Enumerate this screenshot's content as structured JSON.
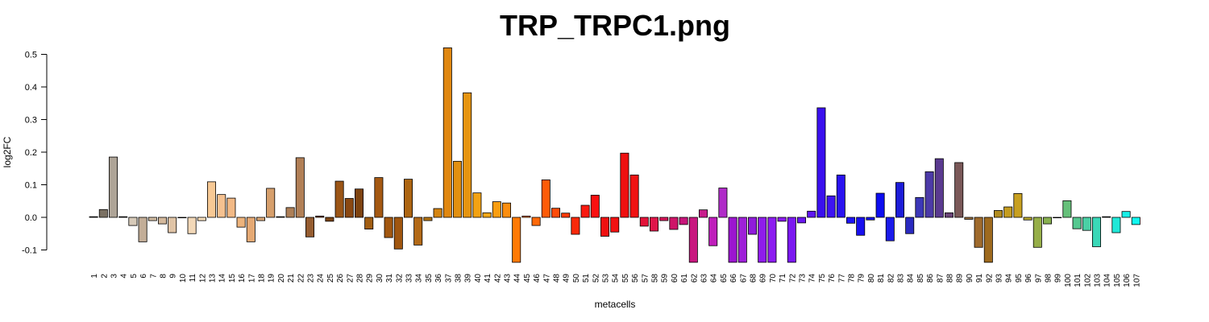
{
  "chart_data": {
    "type": "bar",
    "title": "TRP_TRPC1.png",
    "xlabel": "metacells",
    "ylabel": "log2FC",
    "ylim": [
      -0.1,
      0.5
    ],
    "yticks": [
      -0.1,
      0.0,
      0.1,
      0.2,
      0.3,
      0.4,
      0.5
    ],
    "ytick_labels": [
      "-0.1",
      "0.0",
      "0.1",
      "0.2",
      "0.3",
      "0.4",
      "0.5"
    ],
    "grid": false,
    "categories": [
      "1",
      "2",
      "3",
      "4",
      "5",
      "6",
      "7",
      "8",
      "9",
      "10",
      "11",
      "12",
      "13",
      "14",
      "15",
      "16",
      "17",
      "18",
      "19",
      "20",
      "21",
      "22",
      "23",
      "24",
      "25",
      "26",
      "27",
      "28",
      "29",
      "30",
      "31",
      "32",
      "33",
      "34",
      "35",
      "36",
      "37",
      "38",
      "39",
      "40",
      "41",
      "42",
      "43",
      "44",
      "45",
      "46",
      "47",
      "48",
      "49",
      "50",
      "51",
      "52",
      "53",
      "54",
      "55",
      "56",
      "57",
      "58",
      "59",
      "60",
      "61",
      "62",
      "63",
      "64",
      "65",
      "66",
      "67",
      "68",
      "69",
      "70",
      "71",
      "72",
      "73",
      "74",
      "75",
      "76",
      "77",
      "78",
      "79",
      "80",
      "81",
      "82",
      "83",
      "84",
      "85",
      "86",
      "87",
      "88",
      "89",
      "90",
      "91",
      "92",
      "93",
      "94",
      "95",
      "96",
      "97",
      "98",
      "99",
      "100",
      "101",
      "102",
      "103",
      "104",
      "105",
      "106",
      "107"
    ],
    "values": [
      0.002,
      0.024,
      0.185,
      0.002,
      -0.025,
      -0.075,
      -0.01,
      -0.02,
      -0.047,
      0.0,
      -0.05,
      -0.01,
      0.109,
      0.07,
      0.059,
      -0.03,
      -0.075,
      -0.01,
      0.089,
      0.002,
      0.03,
      0.183,
      -0.06,
      0.004,
      -0.012,
      0.111,
      0.058,
      0.087,
      -0.036,
      0.122,
      -0.062,
      -0.097,
      0.117,
      -0.085,
      -0.01,
      0.027,
      0.52,
      0.172,
      0.382,
      0.075,
      0.014,
      0.048,
      0.044,
      -0.138,
      0.004,
      -0.025,
      0.115,
      0.028,
      0.013,
      -0.052,
      0.037,
      0.068,
      -0.058,
      -0.045,
      0.197,
      0.13,
      -0.027,
      -0.042,
      -0.01,
      -0.037,
      -0.022,
      -0.138,
      0.023,
      -0.087,
      0.09,
      -0.138,
      -0.138,
      -0.052,
      -0.138,
      -0.138,
      -0.012,
      -0.138,
      -0.017,
      0.019,
      0.336,
      0.066,
      0.13,
      -0.018,
      -0.055,
      -0.008,
      0.074,
      -0.072,
      0.107,
      -0.05,
      0.061,
      0.14,
      0.18,
      0.014,
      0.168,
      -0.006,
      -0.092,
      -0.138,
      0.021,
      0.032,
      0.073,
      -0.008,
      -0.092,
      -0.02,
      0.0,
      0.051,
      -0.035,
      -0.04,
      -0.09,
      0.002,
      -0.047,
      0.018,
      -0.022
    ],
    "colors": [
      "#3a3025",
      "#7b7163",
      "#aea497",
      "#cec7be",
      "#d7cab9",
      "#c2ad97",
      "#d1bca2",
      "#d4b99d",
      "#e0c4a6",
      "#ead1b3",
      "#f2d8b8",
      "#f8deba",
      "#f7c995",
      "#f5c190",
      "#f2b985",
      "#edb37b",
      "#e5a974",
      "#ddaa79",
      "#d69f6c",
      "#bd8860",
      "#ad7f57",
      "#b17f56",
      "#955c30",
      "#8a4f17",
      "#7d4412",
      "#9b5516",
      "#8a4812",
      "#7e430f",
      "#a15d12",
      "#a55913",
      "#a25710",
      "#a0560f",
      "#ad6511",
      "#b26917",
      "#b37412",
      "#d58510",
      "#e08710",
      "#e29011",
      "#e59410",
      "#f2a213",
      "#f2a818",
      "#fa9d10",
      "#fb8e10",
      "#ff7a05",
      "#ff7a08",
      "#ff6a0a",
      "#ff5b08",
      "#ff4b08",
      "#ff3a08",
      "#f8290a",
      "#f91a10",
      "#fa1010",
      "#f01010",
      "#f11111",
      "#ef1010",
      "#f01313",
      "#e3133a",
      "#e0154a",
      "#d71559",
      "#cf1568",
      "#c8157b",
      "#c8187f",
      "#c81e8c",
      "#bf1ebb",
      "#b02bc8",
      "#9c16d0",
      "#9e20d8",
      "#901cdb",
      "#8f1ceb",
      "#8c1cf0",
      "#8b1af0",
      "#7b18f0",
      "#6a18f0",
      "#5e17f0",
      "#3a10ee",
      "#3e13f3",
      "#2a12f0",
      "#1e14f5",
      "#1910ef",
      "#1412f0",
      "#0d0df0",
      "#1a1aea",
      "#1c1cd8",
      "#2a2ac0",
      "#3c37b8",
      "#4c3aa8",
      "#5a3a90",
      "#6a4478",
      "#7a5858",
      "#9a7040",
      "#9f6a2c",
      "#9e6a1e",
      "#b18c20",
      "#c49c20",
      "#c8a020",
      "#b8a830",
      "#96ae48",
      "#88b050",
      "#7ab85a",
      "#66c07a",
      "#55c890",
      "#4ad0a5",
      "#3ad8b8",
      "#2be0c8",
      "#20e8d8",
      "#1af0e8",
      "#10f8f0"
    ]
  }
}
